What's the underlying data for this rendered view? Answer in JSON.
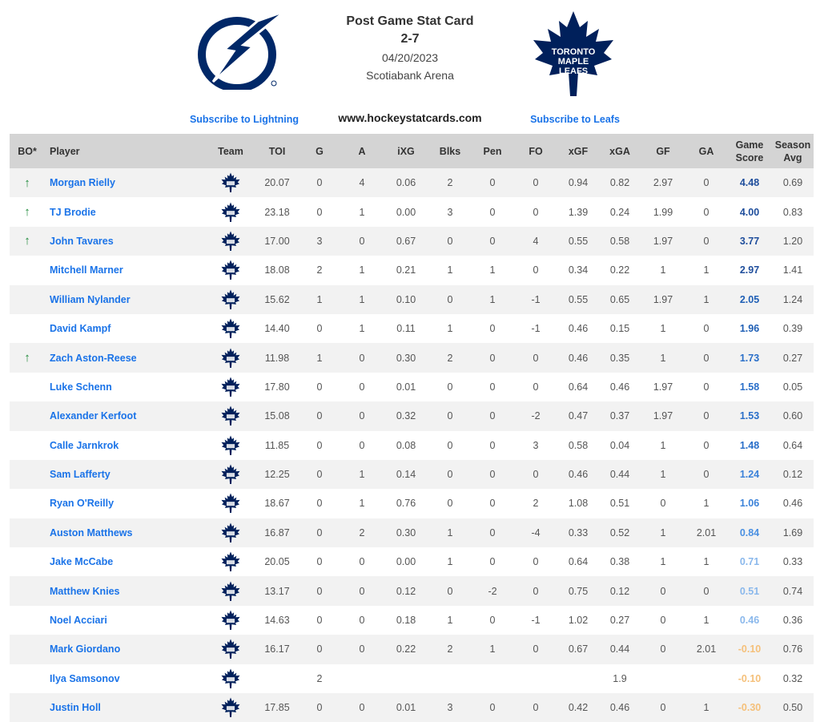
{
  "header": {
    "title": "Post Game Stat Card",
    "score": "2-7",
    "date": "04/20/2023",
    "venue": "Scotiabank Arena",
    "subscribe_left": "Subscribe to Lightning",
    "website": "www.hockeystatcards.com",
    "subscribe_right": "Subscribe to Leafs",
    "left_logo_icon": "lightning-bolt-icon",
    "right_logo_icon": "maple-leaf-icon",
    "right_logo_text": [
      "TORONTO",
      "MAPLE",
      "LEAFS"
    ]
  },
  "colors": {
    "lightning_blue": "#002868",
    "leafs_blue": "#00205B",
    "link_blue": "#1a73e8",
    "header_gray": "#d4d4d4",
    "arrow_green": "#1e8a3a"
  },
  "table": {
    "columns": [
      "BO*",
      "Player",
      "Team",
      "TOI",
      "G",
      "A",
      "iXG",
      "Blks",
      "Pen",
      "FO",
      "xGF",
      "xGA",
      "GF",
      "GA",
      "Game Score",
      "Season Avg"
    ],
    "rows": [
      {
        "bo": "↑",
        "player": "Morgan Rielly",
        "toi": "20.07",
        "g": "0",
        "a": "4",
        "ixg": "0.06",
        "blks": "2",
        "pen": "0",
        "fo": "0",
        "xgf": "0.94",
        "xga": "0.82",
        "gf": "2.97",
        "ga": "0",
        "gs": "4.48",
        "avg": "0.69",
        "gs_color": "#1f4e9c"
      },
      {
        "bo": "↑",
        "player": "TJ Brodie",
        "toi": "23.18",
        "g": "0",
        "a": "1",
        "ixg": "0.00",
        "blks": "3",
        "pen": "0",
        "fo": "0",
        "xgf": "1.39",
        "xga": "0.24",
        "gf": "1.99",
        "ga": "0",
        "gs": "4.00",
        "avg": "0.83",
        "gs_color": "#1f4e9c"
      },
      {
        "bo": "↑",
        "player": "John Tavares",
        "toi": "17.00",
        "g": "3",
        "a": "0",
        "ixg": "0.67",
        "blks": "0",
        "pen": "0",
        "fo": "4",
        "xgf": "0.55",
        "xga": "0.58",
        "gf": "1.97",
        "ga": "0",
        "gs": "3.77",
        "avg": "1.20",
        "gs_color": "#1f4e9c"
      },
      {
        "bo": "",
        "player": "Mitchell Marner",
        "toi": "18.08",
        "g": "2",
        "a": "1",
        "ixg": "0.21",
        "blks": "1",
        "pen": "1",
        "fo": "0",
        "xgf": "0.34",
        "xga": "0.22",
        "gf": "1",
        "ga": "1",
        "gs": "2.97",
        "avg": "1.41",
        "gs_color": "#1f4e9c"
      },
      {
        "bo": "",
        "player": "William Nylander",
        "toi": "15.62",
        "g": "1",
        "a": "1",
        "ixg": "0.10",
        "blks": "0",
        "pen": "1",
        "fo": "-1",
        "xgf": "0.55",
        "xga": "0.65",
        "gf": "1.97",
        "ga": "1",
        "gs": "2.05",
        "avg": "1.24",
        "gs_color": "#1f5fb5"
      },
      {
        "bo": "",
        "player": "David Kampf",
        "toi": "14.40",
        "g": "0",
        "a": "1",
        "ixg": "0.11",
        "blks": "1",
        "pen": "0",
        "fo": "-1",
        "xgf": "0.46",
        "xga": "0.15",
        "gf": "1",
        "ga": "0",
        "gs": "1.96",
        "avg": "0.39",
        "gs_color": "#1f5fb5"
      },
      {
        "bo": "↑",
        "player": "Zach Aston-Reese",
        "toi": "11.98",
        "g": "1",
        "a": "0",
        "ixg": "0.30",
        "blks": "2",
        "pen": "0",
        "fo": "0",
        "xgf": "0.46",
        "xga": "0.35",
        "gf": "1",
        "ga": "0",
        "gs": "1.73",
        "avg": "0.27",
        "gs_color": "#2a6fc9"
      },
      {
        "bo": "",
        "player": "Luke Schenn",
        "toi": "17.80",
        "g": "0",
        "a": "0",
        "ixg": "0.01",
        "blks": "0",
        "pen": "0",
        "fo": "0",
        "xgf": "0.64",
        "xga": "0.46",
        "gf": "1.97",
        "ga": "0",
        "gs": "1.58",
        "avg": "0.05",
        "gs_color": "#2a6fc9"
      },
      {
        "bo": "",
        "player": "Alexander Kerfoot",
        "toi": "15.08",
        "g": "0",
        "a": "0",
        "ixg": "0.32",
        "blks": "0",
        "pen": "0",
        "fo": "-2",
        "xgf": "0.47",
        "xga": "0.37",
        "gf": "1.97",
        "ga": "0",
        "gs": "1.53",
        "avg": "0.60",
        "gs_color": "#2a6fc9"
      },
      {
        "bo": "",
        "player": "Calle Jarnkrok",
        "toi": "11.85",
        "g": "0",
        "a": "0",
        "ixg": "0.08",
        "blks": "0",
        "pen": "0",
        "fo": "3",
        "xgf": "0.58",
        "xga": "0.04",
        "gf": "1",
        "ga": "0",
        "gs": "1.48",
        "avg": "0.64",
        "gs_color": "#2a6fc9"
      },
      {
        "bo": "",
        "player": "Sam Lafferty",
        "toi": "12.25",
        "g": "0",
        "a": "1",
        "ixg": "0.14",
        "blks": "0",
        "pen": "0",
        "fo": "0",
        "xgf": "0.46",
        "xga": "0.44",
        "gf": "1",
        "ga": "0",
        "gs": "1.24",
        "avg": "0.12",
        "gs_color": "#3b82d9"
      },
      {
        "bo": "",
        "player": "Ryan O'Reilly",
        "toi": "18.67",
        "g": "0",
        "a": "1",
        "ixg": "0.76",
        "blks": "0",
        "pen": "0",
        "fo": "2",
        "xgf": "1.08",
        "xga": "0.51",
        "gf": "0",
        "ga": "1",
        "gs": "1.06",
        "avg": "0.46",
        "gs_color": "#3b82d9"
      },
      {
        "bo": "",
        "player": "Auston Matthews",
        "toi": "16.87",
        "g": "0",
        "a": "2",
        "ixg": "0.30",
        "blks": "1",
        "pen": "0",
        "fo": "-4",
        "xgf": "0.33",
        "xga": "0.52",
        "gf": "1",
        "ga": "2.01",
        "gs": "0.84",
        "avg": "1.69",
        "gs_color": "#4a90e2"
      },
      {
        "bo": "",
        "player": "Jake McCabe",
        "toi": "20.05",
        "g": "0",
        "a": "0",
        "ixg": "0.00",
        "blks": "1",
        "pen": "0",
        "fo": "0",
        "xgf": "0.64",
        "xga": "0.38",
        "gf": "1",
        "ga": "1",
        "gs": "0.71",
        "avg": "0.33",
        "gs_color": "#8ab8ec"
      },
      {
        "bo": "",
        "player": "Matthew Knies",
        "toi": "13.17",
        "g": "0",
        "a": "0",
        "ixg": "0.12",
        "blks": "0",
        "pen": "-2",
        "fo": "0",
        "xgf": "0.75",
        "xga": "0.12",
        "gf": "0",
        "ga": "0",
        "gs": "0.51",
        "avg": "0.74",
        "gs_color": "#8ab8ec"
      },
      {
        "bo": "",
        "player": "Noel Acciari",
        "toi": "14.63",
        "g": "0",
        "a": "0",
        "ixg": "0.18",
        "blks": "1",
        "pen": "0",
        "fo": "-1",
        "xgf": "1.02",
        "xga": "0.27",
        "gf": "0",
        "ga": "1",
        "gs": "0.46",
        "avg": "0.36",
        "gs_color": "#8ab8ec"
      },
      {
        "bo": "",
        "player": "Mark Giordano",
        "toi": "16.17",
        "g": "0",
        "a": "0",
        "ixg": "0.22",
        "blks": "2",
        "pen": "1",
        "fo": "0",
        "xgf": "0.67",
        "xga": "0.44",
        "gf": "0",
        "ga": "2.01",
        "gs": "-0.10",
        "avg": "0.76",
        "gs_color": "#f5c07a"
      },
      {
        "bo": "",
        "player": "Ilya Samsonov",
        "toi": "",
        "g": "2",
        "a": "",
        "ixg": "",
        "blks": "",
        "pen": "",
        "fo": "",
        "xgf": "",
        "xga": "1.9",
        "gf": "",
        "ga": "",
        "gs": "-0.10",
        "avg": "0.32",
        "gs_color": "#f5c07a"
      },
      {
        "bo": "",
        "player": "Justin Holl",
        "toi": "17.85",
        "g": "0",
        "a": "0",
        "ixg": "0.01",
        "blks": "3",
        "pen": "0",
        "fo": "0",
        "xgf": "0.42",
        "xga": "0.46",
        "gf": "0",
        "ga": "1",
        "gs": "-0.30",
        "avg": "0.50",
        "gs_color": "#f5c07a"
      }
    ]
  }
}
